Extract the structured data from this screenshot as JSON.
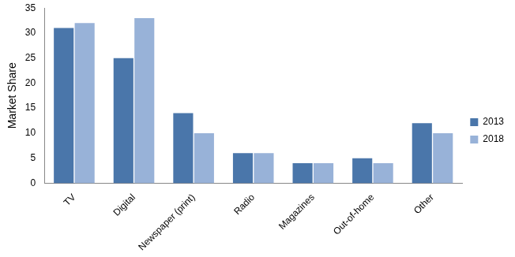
{
  "chart_data": {
    "type": "bar",
    "y_label": "Market Share",
    "categories": [
      "TV",
      "Digital",
      "Newspaper (print)",
      "Radio",
      "Magazines",
      "Out-of-home",
      "Other"
    ],
    "series": [
      {
        "name": "2013",
        "color": "#4a76aa",
        "values": [
          31,
          25,
          14,
          6,
          4,
          5,
          12
        ]
      },
      {
        "name": "2018",
        "color": "#98b2d8",
        "values": [
          32,
          33,
          10,
          6,
          4,
          4,
          10
        ]
      }
    ],
    "ylim": [
      0,
      35
    ],
    "yticks": [
      0,
      5,
      10,
      15,
      20,
      25,
      30,
      35
    ],
    "grid": false,
    "legend": "right"
  }
}
